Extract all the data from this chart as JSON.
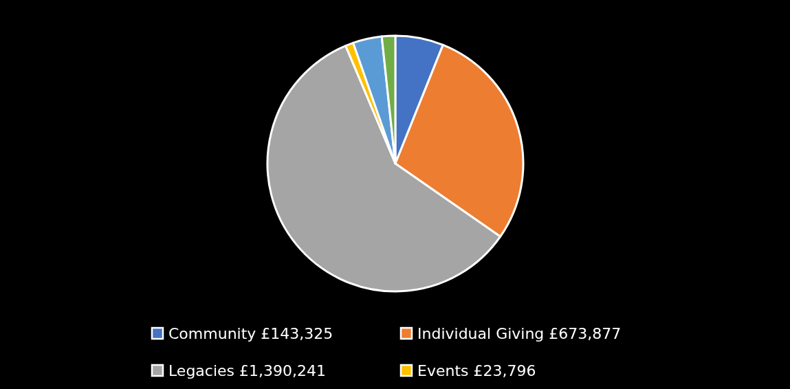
{
  "chart_data": {
    "type": "pie",
    "categories": [
      "Community",
      "Individual Giving",
      "Legacies",
      "Events",
      null,
      null
    ],
    "values": [
      143325,
      673877,
      1390241,
      23796,
      86000,
      40000
    ],
    "value_labels": [
      "£143,325",
      "£673,877",
      "£1,390,241",
      "£23,796",
      null,
      null
    ],
    "colors": [
      "#4472c4",
      "#ed7d31",
      "#a5a5a5",
      "#ffc000",
      "#5b9bd5",
      "#70ad47"
    ],
    "legend": "bottom"
  }
}
